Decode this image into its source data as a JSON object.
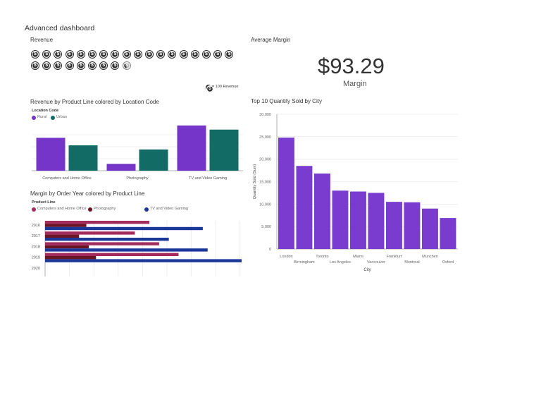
{
  "dashboard": {
    "title": "Advanced dashboard"
  },
  "revenue": {
    "title": "Revenue",
    "full_coins": 26,
    "partial_coin": true,
    "legend": "= 100 Revenue",
    "coin_icon": "dollar-coin-icon"
  },
  "average_margin": {
    "title": "Average Margin",
    "value": "$93.29",
    "label": "Margin"
  },
  "colors": {
    "rural": "#7535c9",
    "urban": "#136b65",
    "computers": "#a32a5c",
    "photography": "#6a1526",
    "tv": "#1a3799",
    "purple_bar": "#7a3ccf"
  },
  "chart_data": [
    {
      "id": "revenue_by_product_line",
      "type": "bar",
      "title": "Revenue by Product Line colored by Location Code",
      "legend_title": "Location Code",
      "categories": [
        "Computers and Home Office",
        "Photography",
        "TV and Video Gaming"
      ],
      "series": [
        {
          "name": "Rural",
          "values": [
            48,
            10,
            66
          ]
        },
        {
          "name": "Urban",
          "values": [
            37,
            31,
            60
          ]
        }
      ],
      "ylim": [
        0,
        70
      ],
      "grid": true,
      "legend_position": "top-left"
    },
    {
      "id": "margin_by_order_year",
      "type": "bar",
      "orientation": "horizontal",
      "title": "Margin by Order Year colored by Product Line",
      "legend_title": "Product Line",
      "categories": [
        "2016",
        "2017",
        "2018",
        "2019",
        "2020"
      ],
      "series": [
        {
          "name": "Computers and Home Office",
          "values": [
            43,
            37,
            47,
            55,
            0
          ]
        },
        {
          "name": "Photography",
          "values": [
            17,
            14,
            18,
            21,
            0
          ]
        },
        {
          "name": "TV and Video Gaming",
          "values": [
            65,
            51,
            67,
            81,
            0
          ]
        }
      ],
      "xlim": [
        0,
        81
      ],
      "grid": true,
      "legend_position": "top-left"
    },
    {
      "id": "top10_quantity_by_city",
      "type": "bar",
      "title": "Top 10 Quantity Sold by City",
      "categories": [
        "London",
        "Birmingham",
        "Toronto",
        "Los Angeles",
        "Miami",
        "Vancouver",
        "Frankfurt",
        "Montreal",
        "Munchen",
        "Oxford"
      ],
      "values": [
        24800,
        18500,
        16800,
        13000,
        12800,
        12500,
        10500,
        10400,
        9000,
        6900
      ],
      "xlabel": "City",
      "ylabel": "Quantity Sold (Sum)",
      "ylim": [
        0,
        30000
      ],
      "yticks": [
        "0",
        "5,000",
        "10,000",
        "15,000",
        "20,000",
        "25,000",
        "30,000"
      ],
      "grid": true
    }
  ]
}
